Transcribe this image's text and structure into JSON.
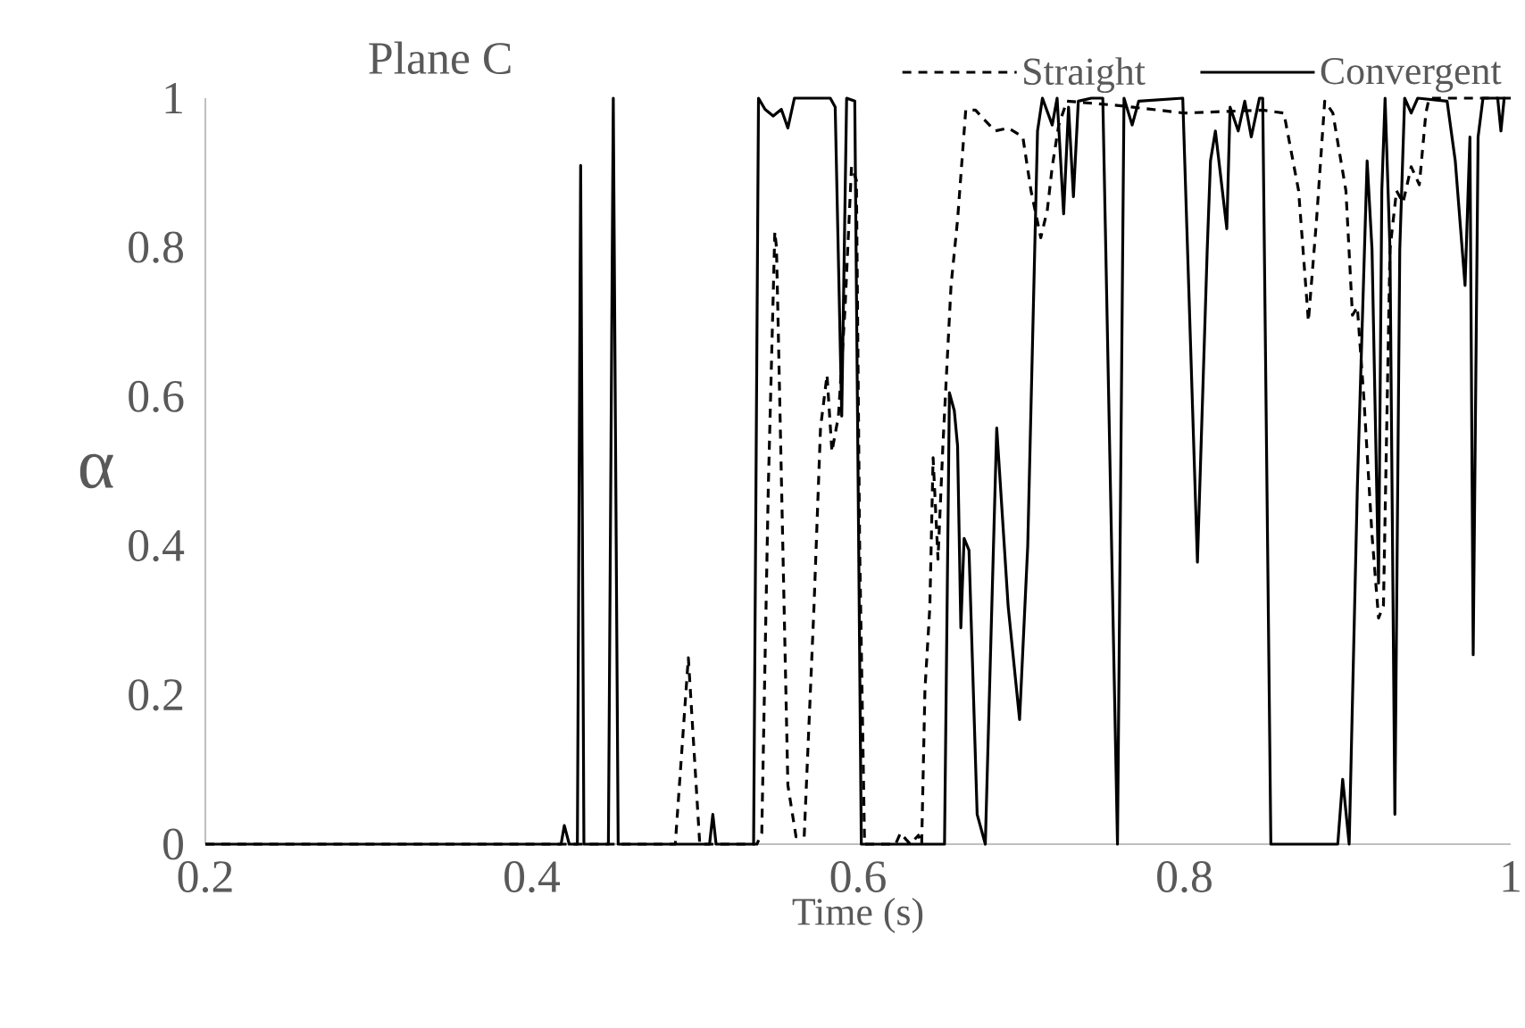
{
  "chart_data": {
    "type": "line",
    "title": "Plane C",
    "xlabel": "Time (s)",
    "ylabel": "α",
    "xlim": [
      0.2,
      1
    ],
    "xticks": [
      0.2,
      0.4,
      0.6,
      0.8,
      1
    ],
    "ylim": [
      0,
      1
    ],
    "yticks": [
      0,
      0.2,
      0.4,
      0.6,
      0.8,
      1
    ],
    "grid": false,
    "legend": "top right",
    "marker": "none",
    "series": [
      {
        "name": "Straight",
        "color": "#000000",
        "line_style": "dashed",
        "x": [
          0.2,
          0.488,
          0.496,
          0.503,
          0.538,
          0.541,
          0.545,
          0.549,
          0.55,
          0.551,
          0.557,
          0.562,
          0.567,
          0.573,
          0.577,
          0.581,
          0.584,
          0.588,
          0.592,
          0.596,
          0.599,
          0.601,
          0.604,
          0.623,
          0.626,
          0.632,
          0.637,
          0.639,
          0.641,
          0.644,
          0.646,
          0.649,
          0.652,
          0.654,
          0.657,
          0.661,
          0.666,
          0.672,
          0.677,
          0.684,
          0.692,
          0.701,
          0.706,
          0.712,
          0.716,
          0.719,
          0.723,
          0.728,
          0.76,
          0.8,
          0.848,
          0.861,
          0.87,
          0.876,
          0.881,
          0.886,
          0.891,
          0.899,
          0.903,
          0.906,
          0.91,
          0.915,
          0.919,
          0.922,
          0.926,
          0.93,
          0.934,
          0.939,
          0.944,
          0.948,
          0.95,
          1.0
        ],
        "values": [
          0,
          0,
          0.25,
          0,
          0,
          0.015,
          0.478,
          0.821,
          0.8,
          0.7,
          0.079,
          0.01,
          0.01,
          0.318,
          0.558,
          0.629,
          0.526,
          0.574,
          0.717,
          0.908,
          0.89,
          0.398,
          0,
          0,
          0.015,
          0,
          0.012,
          0,
          0.207,
          0.318,
          0.518,
          0.382,
          0.534,
          0.621,
          0.749,
          0.837,
          0.984,
          0.984,
          0.972,
          0.956,
          0.96,
          0.948,
          0.876,
          0.813,
          0.85,
          0.908,
          0.964,
          0.996,
          0.99,
          0.98,
          0.984,
          0.98,
          0.876,
          0.701,
          0.837,
          0.996,
          0.98,
          0.876,
          0.709,
          0.72,
          0.598,
          0.414,
          0.303,
          0.32,
          0.797,
          0.876,
          0.86,
          0.908,
          0.884,
          0.98,
          1.0,
          1.0
        ]
      },
      {
        "name": "Convergent",
        "color": "#000000",
        "line_style": "solid",
        "x": [
          0.2,
          0.418,
          0.42,
          0.423,
          0.428,
          0.43,
          0.432,
          0.434,
          0.447,
          0.45,
          0.453,
          0.509,
          0.511,
          0.513,
          0.536,
          0.539,
          0.543,
          0.548,
          0.553,
          0.557,
          0.561,
          0.583,
          0.586,
          0.59,
          0.593,
          0.598,
          0.602,
          0.653,
          0.656,
          0.659,
          0.661,
          0.663,
          0.665,
          0.668,
          0.673,
          0.678,
          0.681,
          0.685,
          0.692,
          0.699,
          0.704,
          0.71,
          0.713,
          0.719,
          0.722,
          0.726,
          0.729,
          0.732,
          0.735,
          0.743,
          0.75,
          0.759,
          0.763,
          0.768,
          0.772,
          0.799,
          0.808,
          0.814,
          0.816,
          0.819,
          0.826,
          0.828,
          0.833,
          0.837,
          0.841,
          0.846,
          0.848,
          0.853,
          0.892,
          0.894,
          0.897,
          0.901,
          0.906,
          0.912,
          0.915,
          0.919,
          0.921,
          0.923,
          0.926,
          0.929,
          0.932,
          0.935,
          0.939,
          0.943,
          0.961,
          0.966,
          0.972,
          0.975,
          0.977,
          0.98,
          0.983,
          0.992,
          0.994,
          0.996,
          1.0
        ],
        "values": [
          0,
          0,
          0.025,
          0,
          0,
          0.91,
          0,
          0,
          0,
          1.0,
          0,
          0,
          0.04,
          0,
          0,
          1.0,
          0.985,
          0.976,
          0.985,
          0.96,
          1.0,
          1.0,
          0.988,
          0.574,
          1.0,
          0.996,
          0,
          0,
          0.605,
          0.581,
          0.534,
          0.29,
          0.41,
          0.394,
          0.04,
          0,
          0.24,
          0.558,
          0.319,
          0.167,
          0.4,
          0.956,
          1.0,
          0.964,
          1.0,
          0.845,
          0.988,
          0.868,
          0.996,
          1.0,
          1.0,
          0,
          1.0,
          0.964,
          0.996,
          1.0,
          0.378,
          0.797,
          0.916,
          0.956,
          0.825,
          0.988,
          0.956,
          0.996,
          0.948,
          1.0,
          1.0,
          0,
          0,
          0,
          0.087,
          0,
          0.478,
          0.916,
          0.797,
          0.35,
          0.877,
          1.0,
          0.797,
          0.04,
          0.797,
          1.0,
          0.98,
          1.0,
          0.996,
          0.916,
          0.749,
          0.948,
          0.254,
          0.948,
          1.0,
          1.0,
          0.956,
          1.0,
          1.0
        ]
      }
    ]
  }
}
